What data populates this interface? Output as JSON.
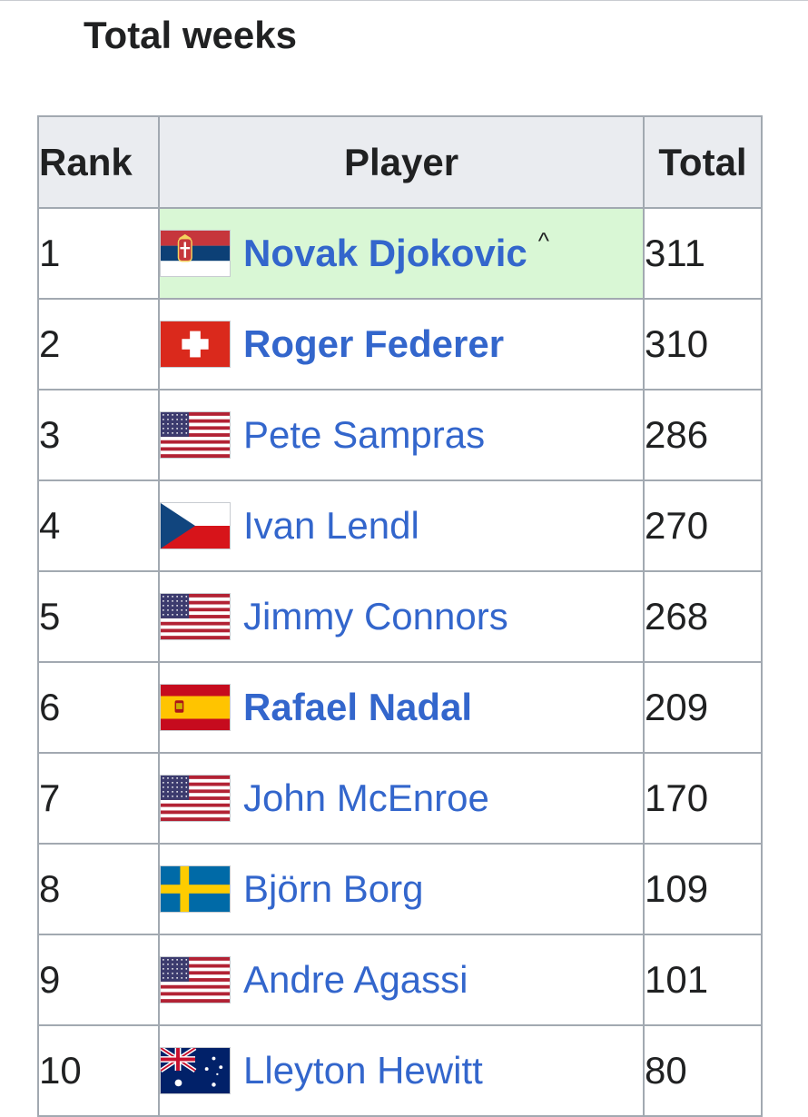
{
  "section": {
    "title": "Total weeks"
  },
  "table": {
    "headers": {
      "rank": "Rank",
      "player": "Player",
      "total": "Total"
    },
    "rows": [
      {
        "rank": "1",
        "player": "Novak Djokovic",
        "marker": "^",
        "total": "311",
        "bold": true,
        "highlight": true,
        "flag": "serbia-flag-icon"
      },
      {
        "rank": "2",
        "player": "Roger Federer",
        "total": "310",
        "bold": true,
        "flag": "switzerland-flag-icon"
      },
      {
        "rank": "3",
        "player": "Pete Sampras",
        "total": "286",
        "flag": "usa-flag-icon"
      },
      {
        "rank": "4",
        "player": "Ivan Lendl",
        "total": "270",
        "flag": "czech-flag-icon"
      },
      {
        "rank": "5",
        "player": "Jimmy Connors",
        "total": "268",
        "flag": "usa-flag-icon"
      },
      {
        "rank": "6",
        "player": "Rafael Nadal",
        "total": "209",
        "bold": true,
        "flag": "spain-flag-icon"
      },
      {
        "rank": "7",
        "player": "John McEnroe",
        "total": "170",
        "flag": "usa-flag-icon"
      },
      {
        "rank": "8",
        "player": "Björn Borg",
        "total": "109",
        "flag": "sweden-flag-icon"
      },
      {
        "rank": "9",
        "player": "Andre Agassi",
        "total": "101",
        "flag": "usa-flag-icon"
      },
      {
        "rank": "10",
        "player": "Lleyton Hewitt",
        "total": "80",
        "flag": "australia-flag-icon"
      }
    ]
  },
  "colors": {
    "link": "#3366cc",
    "highlight": "#d9f7d5",
    "header_bg": "#eaecf0",
    "border": "#a2a9b1"
  }
}
